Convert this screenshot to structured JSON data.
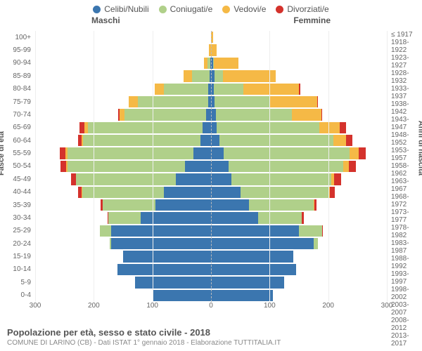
{
  "legend": {
    "items": [
      {
        "label": "Celibi/Nubili",
        "color": "#3b76af"
      },
      {
        "label": "Coniugati/e",
        "color": "#b0d08a"
      },
      {
        "label": "Vedovi/e",
        "color": "#f5b946"
      },
      {
        "label": "Divorziati/e",
        "color": "#d4322c"
      }
    ]
  },
  "header": {
    "male": "Maschi",
    "female": "Femmine"
  },
  "axis": {
    "y_left_title": "Fasce di età",
    "y_right_title": "Anni di nascita",
    "xticks": [
      300,
      200,
      100,
      0,
      100,
      200,
      300
    ],
    "xmax": 300
  },
  "title": "Popolazione per età, sesso e stato civile - 2018",
  "subtitle": "COMUNE DI LARINO (CB) - Dati ISTAT 1° gennaio 2018 - Elaborazione TUTTITALIA.IT",
  "colors": {
    "celibi": "#3b76af",
    "coniugati": "#b0d08a",
    "vedovi": "#f5b946",
    "divorziati": "#d4322c",
    "grid": "#eeeeee",
    "centerline": "#bbbbbb",
    "bg": "#ffffff"
  },
  "rows": [
    {
      "age": "100+",
      "birth": "≤ 1917",
      "m": [
        0,
        0,
        0,
        0
      ],
      "f": [
        0,
        0,
        3,
        0
      ]
    },
    {
      "age": "95-99",
      "birth": "1918-1922",
      "m": [
        0,
        0,
        4,
        0
      ],
      "f": [
        0,
        0,
        10,
        0
      ]
    },
    {
      "age": "90-94",
      "birth": "1923-1927",
      "m": [
        1,
        5,
        6,
        0
      ],
      "f": [
        3,
        2,
        42,
        0
      ]
    },
    {
      "age": "85-89",
      "birth": "1928-1932",
      "m": [
        3,
        30,
        14,
        0
      ],
      "f": [
        6,
        14,
        90,
        0
      ]
    },
    {
      "age": "80-84",
      "birth": "1933-1937",
      "m": [
        5,
        75,
        16,
        0
      ],
      "f": [
        5,
        50,
        95,
        2
      ]
    },
    {
      "age": "75-79",
      "birth": "1938-1942",
      "m": [
        5,
        120,
        15,
        1
      ],
      "f": [
        6,
        95,
        80,
        2
      ]
    },
    {
      "age": "70-74",
      "birth": "1943-1947",
      "m": [
        8,
        140,
        8,
        2
      ],
      "f": [
        8,
        130,
        50,
        2
      ]
    },
    {
      "age": "65-69",
      "birth": "1948-1952",
      "m": [
        15,
        195,
        6,
        8
      ],
      "f": [
        10,
        175,
        35,
        10
      ]
    },
    {
      "age": "60-64",
      "birth": "1953-1957",
      "m": [
        18,
        200,
        3,
        6
      ],
      "f": [
        14,
        195,
        22,
        10
      ]
    },
    {
      "age": "55-59",
      "birth": "1958-1962",
      "m": [
        30,
        215,
        3,
        10
      ],
      "f": [
        22,
        215,
        15,
        12
      ]
    },
    {
      "age": "50-54",
      "birth": "1963-1967",
      "m": [
        45,
        200,
        2,
        10
      ],
      "f": [
        30,
        195,
        10,
        12
      ]
    },
    {
      "age": "45-49",
      "birth": "1968-1972",
      "m": [
        60,
        170,
        1,
        8
      ],
      "f": [
        35,
        170,
        5,
        12
      ]
    },
    {
      "age": "40-44",
      "birth": "1973-1977",
      "m": [
        80,
        140,
        1,
        6
      ],
      "f": [
        50,
        150,
        3,
        8
      ]
    },
    {
      "age": "35-39",
      "birth": "1978-1982",
      "m": [
        95,
        90,
        0,
        3
      ],
      "f": [
        65,
        110,
        1,
        4
      ]
    },
    {
      "age": "30-34",
      "birth": "1983-1987",
      "m": [
        120,
        55,
        0,
        2
      ],
      "f": [
        80,
        75,
        0,
        3
      ]
    },
    {
      "age": "25-29",
      "birth": "1988-1992",
      "m": [
        170,
        20,
        0,
        0
      ],
      "f": [
        150,
        40,
        0,
        1
      ]
    },
    {
      "age": "20-24",
      "birth": "1993-1997",
      "m": [
        170,
        3,
        0,
        0
      ],
      "f": [
        175,
        8,
        0,
        0
      ]
    },
    {
      "age": "15-19",
      "birth": "1998-2002",
      "m": [
        150,
        0,
        0,
        0
      ],
      "f": [
        140,
        0,
        0,
        0
      ]
    },
    {
      "age": "10-14",
      "birth": "2003-2007",
      "m": [
        160,
        0,
        0,
        0
      ],
      "f": [
        145,
        0,
        0,
        0
      ]
    },
    {
      "age": "5-9",
      "birth": "2008-2012",
      "m": [
        130,
        0,
        0,
        0
      ],
      "f": [
        125,
        0,
        0,
        0
      ]
    },
    {
      "age": "0-4",
      "birth": "2013-2017",
      "m": [
        100,
        0,
        0,
        0
      ],
      "f": [
        105,
        0,
        0,
        0
      ]
    }
  ]
}
